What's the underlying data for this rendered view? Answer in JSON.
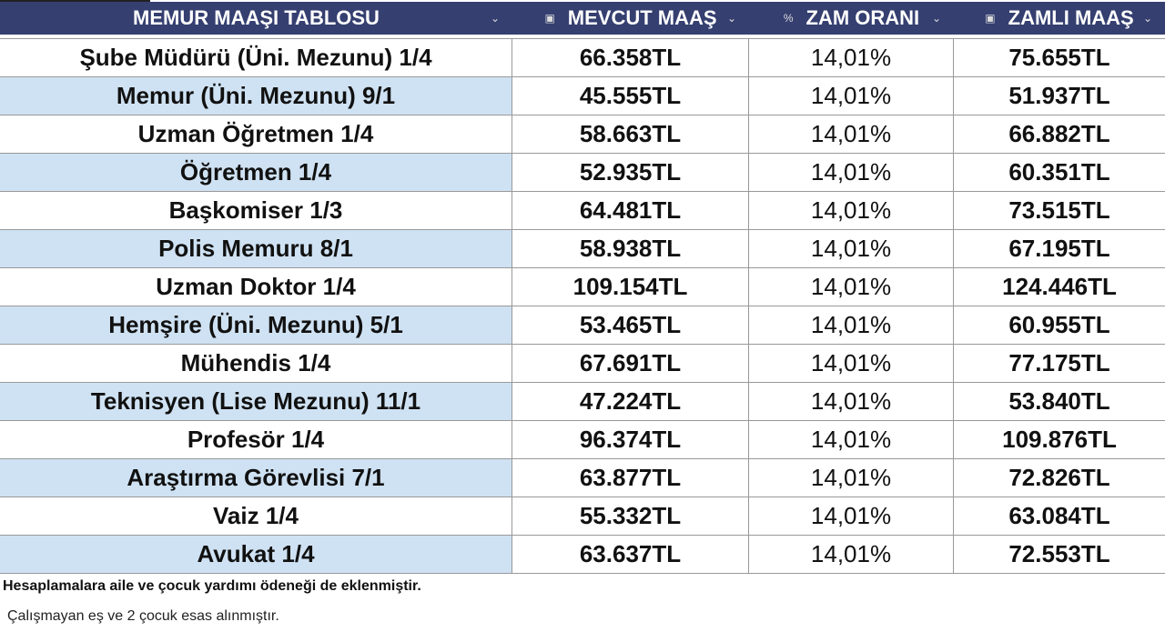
{
  "header": {
    "columns": [
      {
        "label": "MEMUR MAAŞI TABLOSU",
        "icon": ""
      },
      {
        "label": "MEVCUT MAAŞ",
        "icon": "cash-icon"
      },
      {
        "label": "ZAM ORANI",
        "icon": "percent-icon"
      },
      {
        "label": "ZAMLI MAAŞ",
        "icon": "cash-icon"
      }
    ],
    "percent_glyph": "%",
    "cash_glyph": "▣",
    "chevron_glyph": "⌄"
  },
  "colors": {
    "header_bg": "#353f70",
    "alt_row": "#cfe2f3"
  },
  "rows": [
    [
      "Şube Müdürü (Üni. Mezunu) 1/4",
      "66.358TL",
      "14,01%",
      "75.655TL"
    ],
    [
      "Memur (Üni. Mezunu) 9/1",
      "45.555TL",
      "14,01%",
      "51.937TL"
    ],
    [
      "Uzman Öğretmen 1/4",
      "58.663TL",
      "14,01%",
      "66.882TL"
    ],
    [
      "Öğretmen 1/4",
      "52.935TL",
      "14,01%",
      "60.351TL"
    ],
    [
      "Başkomiser 1/3",
      "64.481TL",
      "14,01%",
      "73.515TL"
    ],
    [
      "Polis Memuru 8/1",
      "58.938TL",
      "14,01%",
      "67.195TL"
    ],
    [
      "Uzman Doktor 1/4",
      "109.154TL",
      "14,01%",
      "124.446TL"
    ],
    [
      "Hemşire (Üni. Mezunu) 5/1",
      "53.465TL",
      "14,01%",
      "60.955TL"
    ],
    [
      "Mühendis 1/4",
      "67.691TL",
      "14,01%",
      "77.175TL"
    ],
    [
      "Teknisyen (Lise Mezunu) 11/1",
      "47.224TL",
      "14,01%",
      "53.840TL"
    ],
    [
      "Profesör 1/4",
      "96.374TL",
      "14,01%",
      "109.876TL"
    ],
    [
      "Araştırma Görevlisi 7/1",
      "63.877TL",
      "14,01%",
      "72.826TL"
    ],
    [
      "Vaiz 1/4",
      "55.332TL",
      "14,01%",
      "63.084TL"
    ],
    [
      "Avukat 1/4",
      "63.637TL",
      "14,01%",
      "72.553TL"
    ]
  ],
  "notes": [
    "Hesaplamalara aile ve çocuk yardımı ödeneği de eklenmiştir.",
    "Çalışmayan eş ve 2 çocuk esas alınmıştır."
  ]
}
